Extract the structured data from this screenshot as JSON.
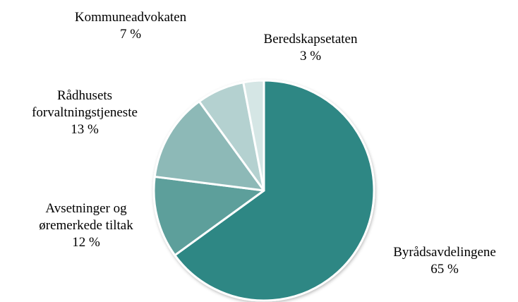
{
  "chart_data": {
    "type": "pie",
    "categories": [
      "Byrådsavdelingene",
      "Avsetninger og øremerkede tiltak",
      "Rådhusets forvaltningstjeneste",
      "Kommuneadvokaten",
      "Beredskapsetaten"
    ],
    "values": [
      65,
      12,
      13,
      7,
      3
    ],
    "value_labels": [
      "65 %",
      "12 %",
      "13 %",
      "7 %",
      "3 %"
    ],
    "colors": [
      "#2e8784",
      "#5d9f9b",
      "#8db9b7",
      "#b4d1d0",
      "#d5e6e5"
    ]
  }
}
